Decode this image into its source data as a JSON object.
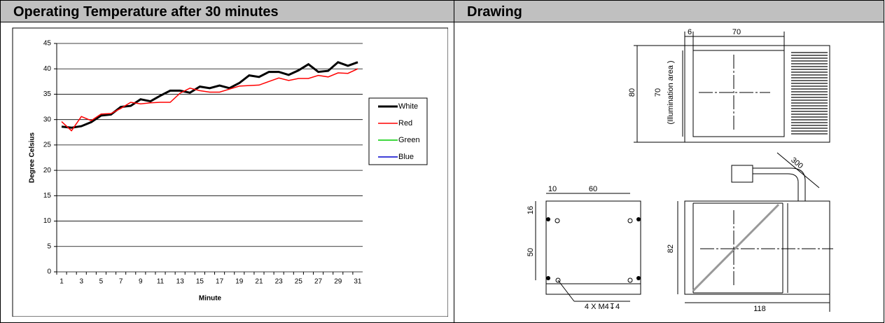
{
  "table": {
    "headers": [
      "Operating Temperature after 30 minutes",
      "Drawing"
    ]
  },
  "chart_data": {
    "type": "line",
    "x_label": "Minute",
    "y_label": "Degree Celsius",
    "categories": [
      1,
      null,
      3,
      null,
      5,
      null,
      7,
      null,
      9,
      null,
      11,
      null,
      13,
      null,
      15,
      null,
      17,
      null,
      19,
      null,
      21,
      null,
      23,
      null,
      25,
      null,
      27,
      null,
      29,
      null,
      31
    ],
    "series": [
      {
        "name": "White",
        "color": "#000000",
        "values": [
          28.6,
          28.4,
          28.7,
          29.5,
          30.8,
          31,
          32.5,
          32.7,
          34,
          33.6,
          34.7,
          35.7,
          35.7,
          35.3,
          36.5,
          36.2,
          36.7,
          36.2,
          37.2,
          38.7,
          38.4,
          39.4,
          39.4,
          38.8,
          39.7,
          40.9,
          39.4,
          39.6,
          41.3,
          40.6,
          41.3
        ]
      },
      {
        "name": "Red",
        "color": "#ff0000",
        "values": [
          29.6,
          27.8,
          30.6,
          29.8,
          31.1,
          31.2,
          32.2,
          33.4,
          33.1,
          33.3,
          33.4,
          33.4,
          35.2,
          36.2,
          35.7,
          35.4,
          35.4,
          36,
          36.6,
          36.7,
          36.8,
          37.5,
          38.2,
          37.7,
          38.1,
          38.1,
          38.7,
          38.4,
          39.2,
          39.1,
          40
        ]
      },
      {
        "name": "Green",
        "color": "#00cc00",
        "values": [
          null,
          null,
          null,
          null,
          null,
          null,
          null,
          null,
          null,
          null,
          null,
          null,
          null,
          null,
          null,
          null,
          null,
          null,
          null,
          null,
          null,
          null,
          null,
          null,
          null,
          null,
          null,
          null,
          null,
          null,
          null
        ]
      },
      {
        "name": "Blue",
        "color": "#0000cc",
        "values": [
          null,
          null,
          null,
          null,
          null,
          null,
          null,
          null,
          null,
          null,
          null,
          null,
          null,
          null,
          null,
          null,
          null,
          null,
          null,
          null,
          null,
          null,
          null,
          null,
          null,
          null,
          null,
          null,
          null,
          null,
          null
        ]
      }
    ],
    "ylim": [
      0,
      45
    ],
    "yticks": [
      0,
      5,
      10,
      15,
      20,
      25,
      30,
      35,
      40,
      45
    ],
    "grid": true,
    "legend": "right"
  },
  "drawing": {
    "labels": [
      "6",
      "70",
      "80",
      "70",
      "(Illumination area )",
      "300",
      "10",
      "60",
      "16",
      "50",
      "82",
      "4 X M4↧4",
      "118"
    ]
  }
}
